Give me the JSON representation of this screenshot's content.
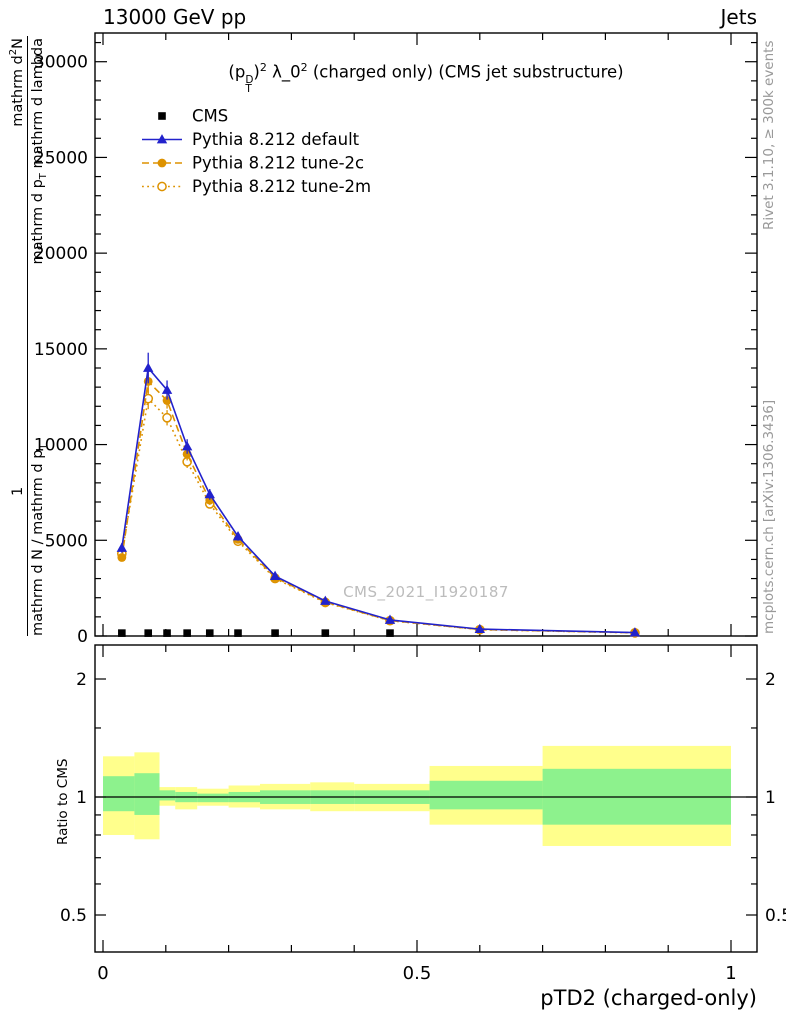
{
  "header": {
    "left": "13000 GeV pp",
    "right": "Jets"
  },
  "title": {
    "t1": "(p",
    "sup": "D",
    "sub": "T",
    "t2": ")",
    "e1": "2",
    "t3": " λ_0",
    "e2": "2",
    "t4": " (charged only) (CMS jet substructure)"
  },
  "watermark": "CMS_2021_I1920187",
  "side_notes": {
    "top": "Rivet 3.1.10, ≥ 300k events",
    "bottom": "mcplots.cern.ch [arXiv:1306.3436]"
  },
  "y_axis_label": {
    "num_one": "1",
    "num_d": "mathrm d",
    "num_sup": "2",
    "num_N": "N",
    "den_left": "mathrm d N / mathrm d p",
    "den_left_sub": "T",
    "den_right_a": "mathrm d p",
    "den_right_sub": "T",
    "den_right_b": " mathrm d lambda"
  },
  "chart_data": [
    {
      "type": "line",
      "panel": "main",
      "title": "(p_T^D)^2 λ_0^2 (charged only) (CMS jet substructure)",
      "xlabel": "pTD2 (charged-only)",
      "ylabel": "1 / (mathrm d N / mathrm d p_T) · mathrm d^2 N / (mathrm d p_T mathrm d lambda)",
      "xlim": [
        -0.013,
        1.041
      ],
      "ylim": [
        0,
        31500
      ],
      "grid": false,
      "legend_position": "upper-left",
      "x": [
        0.03,
        0.072,
        0.102,
        0.134,
        0.17,
        0.215,
        0.274,
        0.354,
        0.457,
        0.6,
        0.847
      ],
      "axes": {
        "x_major": [
          {
            "v": 0,
            "label": "0"
          },
          {
            "v": 0.5,
            "label": "0.5"
          },
          {
            "v": 1,
            "label": "1"
          }
        ],
        "x_minor": [
          0.1,
          0.2,
          0.3,
          0.4,
          0.6,
          0.7,
          0.8,
          0.9
        ],
        "y_major": [
          {
            "v": 0,
            "label": "0"
          },
          {
            "v": 5000,
            "label": "5000"
          },
          {
            "v": 10000,
            "label": "10000"
          },
          {
            "v": 15000,
            "label": "15000"
          },
          {
            "v": 20000,
            "label": "20000"
          },
          {
            "v": 25000,
            "label": "25000"
          },
          {
            "v": 30000,
            "label": "30000"
          }
        ],
        "y_minor_step": 1000
      },
      "series": [
        {
          "id": "cms",
          "name": "CMS",
          "color": "#000000",
          "marker": "square",
          "line": "none",
          "values": [
            150,
            150,
            150,
            150,
            150,
            150,
            150,
            150,
            150,
            null,
            null
          ]
        },
        {
          "id": "pythia-default",
          "name": "Pythia 8.212 default",
          "color": "#2222cc",
          "marker": "triangle",
          "line": "solid",
          "values": [
            4600,
            14000,
            12850,
            9900,
            7400,
            5200,
            3130,
            1830,
            840,
            360,
            180
          ],
          "errors": [
            250,
            800,
            500,
            380,
            280,
            220,
            140,
            90,
            50,
            25,
            15
          ]
        },
        {
          "id": "pythia-tune-2c",
          "name": "Pythia 8.212 tune-2c",
          "color": "#dd9200",
          "marker": "circle",
          "line": "dashed",
          "values": [
            4100,
            13300,
            12300,
            9500,
            7100,
            5050,
            3050,
            1780,
            810,
            340,
            170
          ],
          "errors": [
            200,
            600,
            420,
            330,
            250,
            190,
            120,
            80,
            45,
            22,
            12
          ]
        },
        {
          "id": "pythia-tune-2m",
          "name": "Pythia 8.212 tune-2m",
          "color": "#dd9200",
          "marker": "circle-open",
          "line": "dotted",
          "values": [
            4300,
            12400,
            11400,
            9100,
            6900,
            4950,
            3000,
            1750,
            800,
            330,
            165
          ],
          "errors": [
            200,
            550,
            400,
            320,
            240,
            185,
            120,
            80,
            45,
            22,
            12
          ]
        }
      ]
    },
    {
      "type": "bands",
      "panel": "ratio",
      "ylabel": "Ratio to CMS",
      "yscale": "log",
      "ylim": [
        0.4,
        2.44
      ],
      "reference_line": 1,
      "colors": {
        "yellow": "#ffff8c",
        "green": "#8df28d"
      },
      "axes": {
        "y_major": [
          {
            "v": 0.5,
            "label": "0.5"
          },
          {
            "v": 1,
            "label": "1"
          },
          {
            "v": 2,
            "label": "2"
          }
        ],
        "y_minor": [
          0.6,
          0.7,
          0.8,
          0.9,
          1.5
        ]
      },
      "bins": [
        {
          "x0": 0.0,
          "x1": 0.05,
          "yellow": [
            0.8,
            1.27
          ],
          "green": [
            0.92,
            1.13
          ]
        },
        {
          "x0": 0.05,
          "x1": 0.09,
          "yellow": [
            0.78,
            1.3
          ],
          "green": [
            0.9,
            1.15
          ]
        },
        {
          "x0": 0.09,
          "x1": 0.115,
          "yellow": [
            0.95,
            1.06
          ],
          "green": [
            0.98,
            1.04
          ]
        },
        {
          "x0": 0.115,
          "x1": 0.15,
          "yellow": [
            0.93,
            1.06
          ],
          "green": [
            0.97,
            1.03
          ]
        },
        {
          "x0": 0.15,
          "x1": 0.2,
          "yellow": [
            0.95,
            1.05
          ],
          "green": [
            0.97,
            1.02
          ]
        },
        {
          "x0": 0.2,
          "x1": 0.25,
          "yellow": [
            0.94,
            1.07
          ],
          "green": [
            0.97,
            1.03
          ]
        },
        {
          "x0": 0.25,
          "x1": 0.33,
          "yellow": [
            0.93,
            1.08
          ],
          "green": [
            0.96,
            1.04
          ]
        },
        {
          "x0": 0.33,
          "x1": 0.4,
          "yellow": [
            0.92,
            1.09
          ],
          "green": [
            0.96,
            1.04
          ]
        },
        {
          "x0": 0.4,
          "x1": 0.52,
          "yellow": [
            0.92,
            1.08
          ],
          "green": [
            0.96,
            1.04
          ]
        },
        {
          "x0": 0.52,
          "x1": 0.7,
          "yellow": [
            0.85,
            1.2
          ],
          "green": [
            0.93,
            1.1
          ]
        },
        {
          "x0": 0.7,
          "x1": 1.0,
          "yellow": [
            0.75,
            1.35
          ],
          "green": [
            0.85,
            1.18
          ]
        }
      ]
    }
  ]
}
